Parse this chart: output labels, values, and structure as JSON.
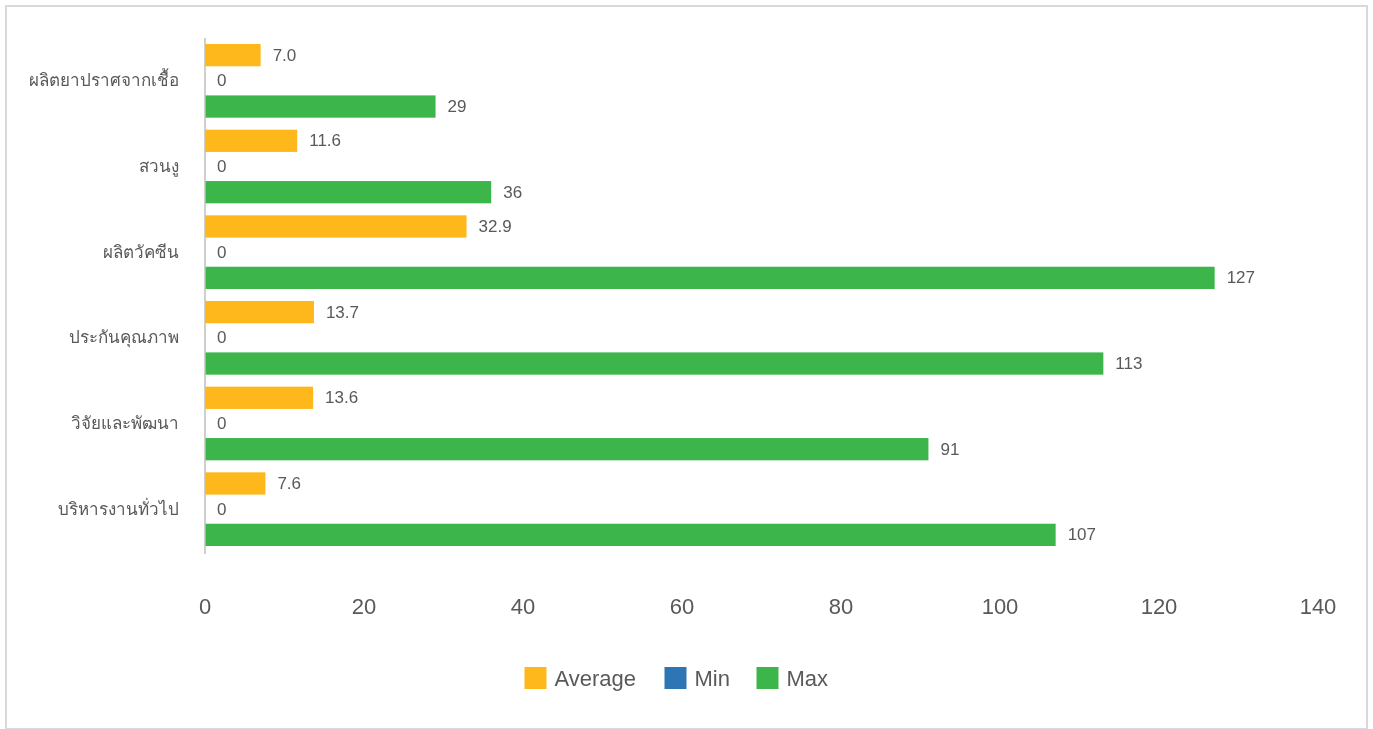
{
  "chart_data": {
    "type": "bar",
    "orientation": "horizontal",
    "categories": [
      "ผลิตยาปราศจากเชื้อ",
      "สวนงู",
      "ผลิตวัคซีน",
      "ประกันคุณภาพ",
      "วิจัยและพัฒนา",
      "บริหารงานทั่วไป"
    ],
    "series": [
      {
        "name": "Average",
        "color": "#ffb81c",
        "values": [
          7.0,
          11.6,
          32.9,
          13.7,
          13.6,
          7.6
        ],
        "value_labels": [
          "7.0",
          "11.6",
          "32.9",
          "13.7",
          "13.6",
          "7.6"
        ]
      },
      {
        "name": "Min",
        "color": "#2e75b6",
        "values": [
          0,
          0,
          0,
          0,
          0,
          0
        ],
        "value_labels": [
          "0",
          "0",
          "0",
          "0",
          "0",
          "0"
        ]
      },
      {
        "name": "Max",
        "color": "#3cb54a",
        "values": [
          29,
          36,
          127,
          113,
          91,
          107
        ],
        "value_labels": [
          "29",
          "36",
          "127",
          "113",
          "91",
          "107"
        ]
      }
    ],
    "xlim": [
      0,
      140
    ],
    "xticks": [
      0,
      20,
      40,
      60,
      80,
      100,
      120,
      140
    ],
    "legend": "bottom"
  }
}
